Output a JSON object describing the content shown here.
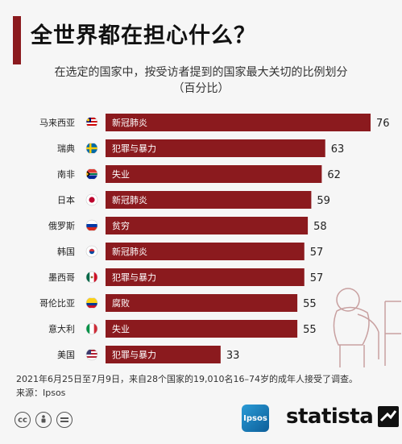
{
  "header": {
    "title": "全世界都在担心什么？",
    "subtitle_line1": "在选定的国家中，按受访者提到的国家最大关切的比例划分",
    "subtitle_line2": "（百分比）"
  },
  "chart_data": {
    "type": "bar",
    "orientation": "horizontal",
    "categories": [
      "马来西亚",
      "瑞典",
      "南非",
      "日本",
      "俄罗斯",
      "韩国",
      "墨西哥",
      "哥伦比亚",
      "意大利",
      "美国"
    ],
    "concerns": [
      "新冠肺炎",
      "犯罪与暴力",
      "失业",
      "新冠肺炎",
      "贫穷",
      "新冠肺炎",
      "犯罪与暴力",
      "腐败",
      "失业",
      "犯罪与暴力"
    ],
    "values": [
      76,
      63,
      62,
      59,
      58,
      57,
      57,
      55,
      55,
      33
    ],
    "flags": [
      "malaysia-flag",
      "sweden-flag",
      "south-africa-flag",
      "japan-flag",
      "russia-flag",
      "south-korea-flag",
      "mexico-flag",
      "colombia-flag",
      "italy-flag",
      "usa-flag"
    ],
    "unit": "百分比",
    "xlim": [
      0,
      76
    ],
    "bar_color": "#8b1a1e",
    "grid": false
  },
  "footer": {
    "note": "2021年6月25日至7月9日，来自28个国家的19,010名16–74岁的成年人接受了调查。",
    "source": "来源：Ipsos",
    "license_icons": [
      "cc-icon",
      "attribution-icon",
      "no-derivatives-icon"
    ],
    "partner_logo": "ipsos",
    "brand": "statista"
  }
}
